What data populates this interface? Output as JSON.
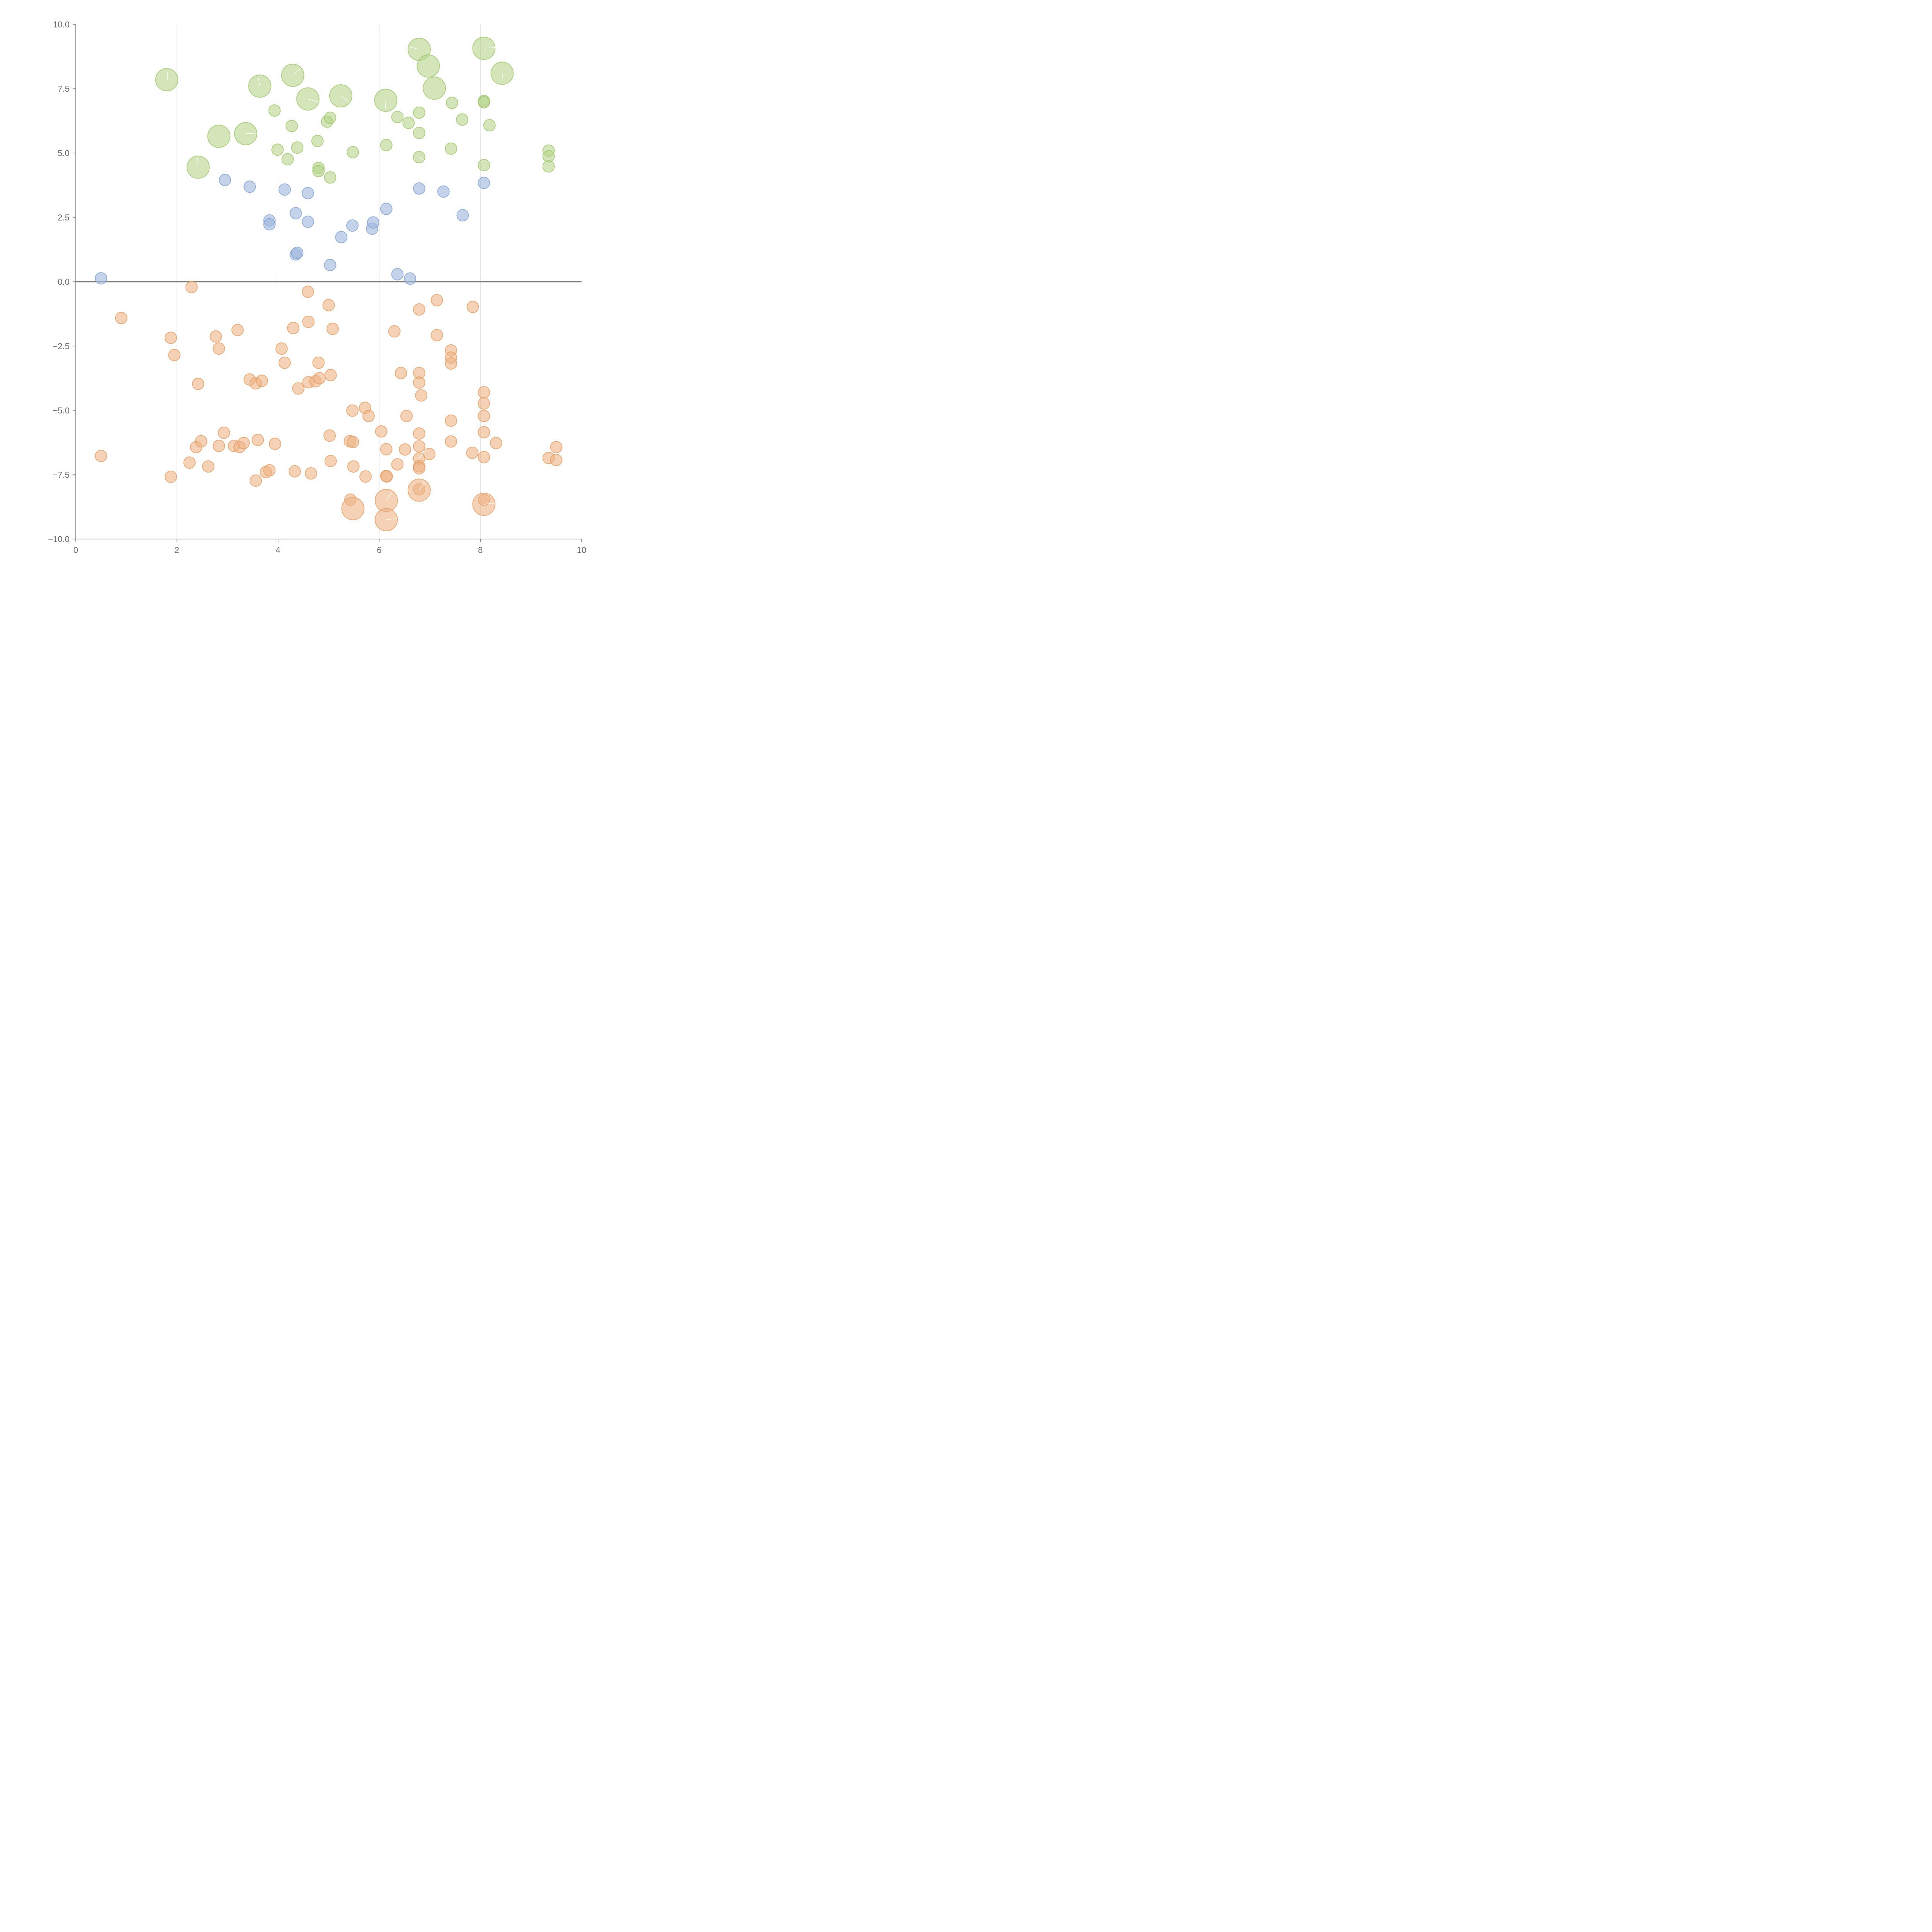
{
  "chart_data": {
    "type": "scatter",
    "title": "",
    "xlabel": "",
    "ylabel": "",
    "xlim": [
      0,
      10
    ],
    "ylim": [
      -10,
      10
    ],
    "grid": "vertical",
    "x_ticks": [
      0,
      2,
      4,
      6,
      8,
      10
    ],
    "x_tick_labels": [
      "0",
      "2",
      "4",
      "6",
      "8",
      "10"
    ],
    "y_ticks": [
      10,
      7.5,
      5,
      2.5,
      0,
      -2.5,
      -5,
      -7.5,
      -10
    ],
    "y_tick_labels": [
      "10.0",
      "7.5",
      "5.0",
      "2.5",
      "0.0",
      "−2.5",
      "−5.0",
      "−7.5",
      "−10.0"
    ],
    "colors": {
      "green_fill": "#b5d38a",
      "green_stroke": "#9cc36b",
      "blue_fill": "#9db6dc",
      "blue_stroke": "#7f9fcf",
      "orange_fill": "#eeb384",
      "orange_stroke": "#e29b62"
    },
    "size_units": "relative (1 = small, 2 = large)",
    "series": [
      {
        "name": "green",
        "color_key": "green",
        "points": [
          [
            1.8,
            7.85,
            2
          ],
          [
            2.42,
            4.45,
            2
          ],
          [
            2.83,
            5.65,
            2
          ],
          [
            3.36,
            5.75,
            2
          ],
          [
            3.64,
            7.6,
            2
          ],
          [
            4.29,
            8.02,
            2
          ],
          [
            4.59,
            7.1,
            2
          ],
          [
            5.24,
            7.22,
            2
          ],
          [
            6.13,
            7.05,
            2
          ],
          [
            6.79,
            9.03,
            2
          ],
          [
            6.97,
            8.38,
            2
          ],
          [
            7.09,
            7.52,
            2
          ],
          [
            8.07,
            9.07,
            2
          ],
          [
            8.43,
            8.1,
            2
          ],
          [
            3.93,
            6.65,
            1
          ],
          [
            3.99,
            5.13,
            1
          ],
          [
            4.19,
            4.76,
            1
          ],
          [
            4.27,
            6.05,
            1
          ],
          [
            4.38,
            5.21,
            1
          ],
          [
            4.78,
            5.47,
            1
          ],
          [
            4.8,
            4.42,
            1
          ],
          [
            4.8,
            4.3,
            1
          ],
          [
            4.97,
            6.22,
            1
          ],
          [
            5.03,
            6.37,
            1
          ],
          [
            5.03,
            4.05,
            1
          ],
          [
            5.48,
            5.03,
            1
          ],
          [
            6.14,
            5.31,
            1
          ],
          [
            6.36,
            6.4,
            1
          ],
          [
            6.58,
            6.17,
            1
          ],
          [
            6.79,
            6.57,
            1
          ],
          [
            6.79,
            5.78,
            1
          ],
          [
            6.79,
            4.84,
            1
          ],
          [
            7.42,
            5.17,
            1
          ],
          [
            7.44,
            6.95,
            1
          ],
          [
            7.64,
            6.3,
            1
          ],
          [
            8.07,
            7.02,
            1
          ],
          [
            8.07,
            6.97,
            1
          ],
          [
            8.07,
            4.53,
            1
          ],
          [
            8.18,
            6.08,
            1
          ],
          [
            9.35,
            5.09,
            1
          ],
          [
            9.35,
            4.87,
            1
          ],
          [
            9.35,
            4.48,
            1
          ]
        ]
      },
      {
        "name": "blue",
        "color_key": "blue",
        "points": [
          [
            0.5,
            0.13,
            1
          ],
          [
            2.95,
            3.95,
            1
          ],
          [
            3.44,
            3.69,
            1
          ],
          [
            3.83,
            2.38,
            1
          ],
          [
            3.83,
            2.23,
            1
          ],
          [
            4.13,
            3.58,
            1
          ],
          [
            4.35,
            2.66,
            1
          ],
          [
            4.35,
            1.06,
            1
          ],
          [
            4.38,
            1.12,
            1
          ],
          [
            4.59,
            3.44,
            1
          ],
          [
            4.59,
            2.33,
            1
          ],
          [
            5.03,
            0.65,
            1
          ],
          [
            5.25,
            1.73,
            1
          ],
          [
            5.47,
            2.18,
            1
          ],
          [
            5.86,
            2.06,
            1
          ],
          [
            5.88,
            2.3,
            1
          ],
          [
            6.14,
            2.83,
            1
          ],
          [
            6.36,
            0.29,
            1
          ],
          [
            6.61,
            0.12,
            1
          ],
          [
            6.79,
            3.62,
            1
          ],
          [
            7.27,
            3.5,
            1
          ],
          [
            7.65,
            2.58,
            1
          ],
          [
            8.07,
            3.84,
            1
          ]
        ]
      },
      {
        "name": "orange",
        "color_key": "orange",
        "points": [
          [
            0.5,
            -6.77,
            1
          ],
          [
            0.9,
            -1.41,
            1
          ],
          [
            1.88,
            -2.18,
            1
          ],
          [
            1.88,
            -7.58,
            1
          ],
          [
            1.95,
            -2.85,
            1
          ],
          [
            2.29,
            -0.21,
            1
          ],
          [
            2.25,
            -7.03,
            1
          ],
          [
            2.38,
            -6.43,
            1
          ],
          [
            2.42,
            -3.97,
            1
          ],
          [
            2.48,
            -6.2,
            1
          ],
          [
            2.62,
            -7.18,
            1
          ],
          [
            2.77,
            -2.13,
            1
          ],
          [
            2.83,
            -2.6,
            1
          ],
          [
            2.83,
            -6.38,
            1
          ],
          [
            2.93,
            -5.87,
            1
          ],
          [
            3.13,
            -6.38,
            1
          ],
          [
            3.2,
            -1.88,
            1
          ],
          [
            3.24,
            -6.42,
            1
          ],
          [
            3.32,
            -6.27,
            1
          ],
          [
            3.44,
            -3.8,
            1
          ],
          [
            3.56,
            -3.95,
            1
          ],
          [
            3.56,
            -7.73,
            1
          ],
          [
            3.6,
            -6.15,
            1
          ],
          [
            3.68,
            -3.85,
            1
          ],
          [
            3.76,
            -7.4,
            1
          ],
          [
            3.83,
            -7.33,
            1
          ],
          [
            3.94,
            -6.3,
            1
          ],
          [
            4.07,
            -2.6,
            1
          ],
          [
            4.13,
            -3.15,
            1
          ],
          [
            4.3,
            -1.8,
            1
          ],
          [
            4.33,
            -7.37,
            1
          ],
          [
            4.4,
            -4.15,
            1
          ],
          [
            4.59,
            -0.39,
            1
          ],
          [
            4.6,
            -1.56,
            1
          ],
          [
            4.6,
            -3.91,
            1
          ],
          [
            4.65,
            -7.45,
            1
          ],
          [
            4.74,
            -3.87,
            1
          ],
          [
            4.8,
            -3.15,
            1
          ],
          [
            4.82,
            -3.75,
            1
          ],
          [
            5.0,
            -0.91,
            1
          ],
          [
            5.02,
            -5.98,
            1
          ],
          [
            5.04,
            -3.63,
            1
          ],
          [
            5.04,
            -6.97,
            1
          ],
          [
            5.08,
            -1.83,
            1
          ],
          [
            5.42,
            -6.2,
            1
          ],
          [
            5.43,
            -8.47,
            1
          ],
          [
            5.47,
            -5.01,
            1
          ],
          [
            5.48,
            -6.23,
            1
          ],
          [
            5.49,
            -7.18,
            1
          ],
          [
            5.72,
            -4.9,
            1
          ],
          [
            5.73,
            -7.57,
            1
          ],
          [
            5.79,
            -5.22,
            1
          ],
          [
            6.04,
            -5.82,
            1
          ],
          [
            6.14,
            -6.51,
            1
          ],
          [
            6.14,
            -7.55,
            1
          ],
          [
            6.15,
            -7.57,
            1
          ],
          [
            6.3,
            -1.93,
            1
          ],
          [
            6.36,
            -7.1,
            1
          ],
          [
            6.43,
            -3.55,
            1
          ],
          [
            6.51,
            -6.52,
            1
          ],
          [
            6.54,
            -5.22,
            1
          ],
          [
            6.79,
            -1.08,
            1
          ],
          [
            6.79,
            -3.55,
            1
          ],
          [
            6.79,
            -3.92,
            1
          ],
          [
            6.79,
            -5.9,
            1
          ],
          [
            6.79,
            -6.4,
            1
          ],
          [
            6.79,
            -6.87,
            1
          ],
          [
            6.79,
            -7.17,
            1
          ],
          [
            6.79,
            -7.25,
            1
          ],
          [
            6.79,
            -8.07,
            1
          ],
          [
            6.83,
            -4.42,
            1
          ],
          [
            6.99,
            -6.7,
            1
          ],
          [
            7.14,
            -0.72,
            1
          ],
          [
            7.14,
            -2.08,
            1
          ],
          [
            7.42,
            -2.67,
            1
          ],
          [
            7.42,
            -2.95,
            1
          ],
          [
            7.42,
            -3.18,
            1
          ],
          [
            7.42,
            -5.4,
            1
          ],
          [
            7.42,
            -6.21,
            1
          ],
          [
            7.84,
            -6.65,
            1
          ],
          [
            7.85,
            -0.98,
            1
          ],
          [
            8.07,
            -4.3,
            1
          ],
          [
            8.07,
            -4.73,
            1
          ],
          [
            8.07,
            -5.22,
            1
          ],
          [
            8.07,
            -5.85,
            1
          ],
          [
            8.07,
            -6.82,
            1
          ],
          [
            8.07,
            -8.48,
            1
          ],
          [
            8.31,
            -6.27,
            1
          ],
          [
            9.35,
            -6.85,
            1
          ],
          [
            9.5,
            -6.43,
            1
          ],
          [
            9.5,
            -6.93,
            1
          ],
          [
            5.48,
            -8.82,
            2
          ],
          [
            6.14,
            -8.5,
            2
          ],
          [
            6.14,
            -9.25,
            2
          ],
          [
            6.79,
            -8.1,
            2
          ],
          [
            8.07,
            -8.65,
            2
          ]
        ]
      }
    ]
  }
}
